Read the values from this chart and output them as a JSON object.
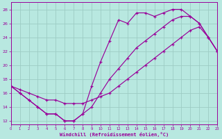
{
  "xlabel": "Windchill (Refroidissement éolien,°C)",
  "bg_color": "#b8e8e0",
  "line_color": "#990099",
  "grid_color": "#9dccc4",
  "xlim": [
    0,
    23
  ],
  "ylim": [
    11.5,
    29
  ],
  "xticks": [
    0,
    1,
    2,
    3,
    4,
    5,
    6,
    7,
    8,
    9,
    10,
    11,
    12,
    13,
    14,
    15,
    16,
    17,
    18,
    19,
    20,
    21,
    22,
    23
  ],
  "yticks": [
    12,
    14,
    16,
    18,
    20,
    22,
    24,
    26,
    28
  ],
  "line1_x": [
    0,
    1,
    2,
    3,
    4,
    5,
    6,
    7,
    8,
    9,
    10,
    11,
    12,
    13,
    14,
    15,
    16,
    17,
    18,
    19,
    20,
    21,
    22,
    23
  ],
  "line1_y": [
    17,
    16,
    15,
    14,
    13,
    13,
    12,
    12,
    13,
    17,
    20.5,
    23.5,
    26.5,
    26,
    27.5,
    27.5,
    27,
    27.5,
    28,
    28,
    27,
    26,
    24,
    22
  ],
  "line2_x": [
    0,
    1,
    2,
    3,
    4,
    5,
    6,
    7,
    8,
    9,
    10,
    11,
    12,
    13,
    14,
    15,
    16,
    17,
    18,
    19,
    20,
    21,
    22,
    23
  ],
  "line2_y": [
    17,
    16,
    15,
    14,
    13,
    13,
    12,
    12,
    13,
    14,
    16,
    18,
    19.5,
    21,
    22.5,
    23.5,
    24.5,
    25.5,
    26.5,
    27,
    27,
    26,
    24,
    22
  ],
  "line3_x": [
    0,
    1,
    2,
    3,
    4,
    5,
    6,
    7,
    8,
    9,
    10,
    11,
    12,
    13,
    14,
    15,
    16,
    17,
    18,
    19,
    20,
    21,
    22,
    23
  ],
  "line3_y": [
    17,
    16.5,
    16,
    15.5,
    15,
    15,
    14.5,
    14.5,
    14.5,
    15,
    15.5,
    16,
    17,
    18,
    19,
    20,
    21,
    22,
    23,
    24,
    25,
    25.5,
    24,
    22
  ]
}
